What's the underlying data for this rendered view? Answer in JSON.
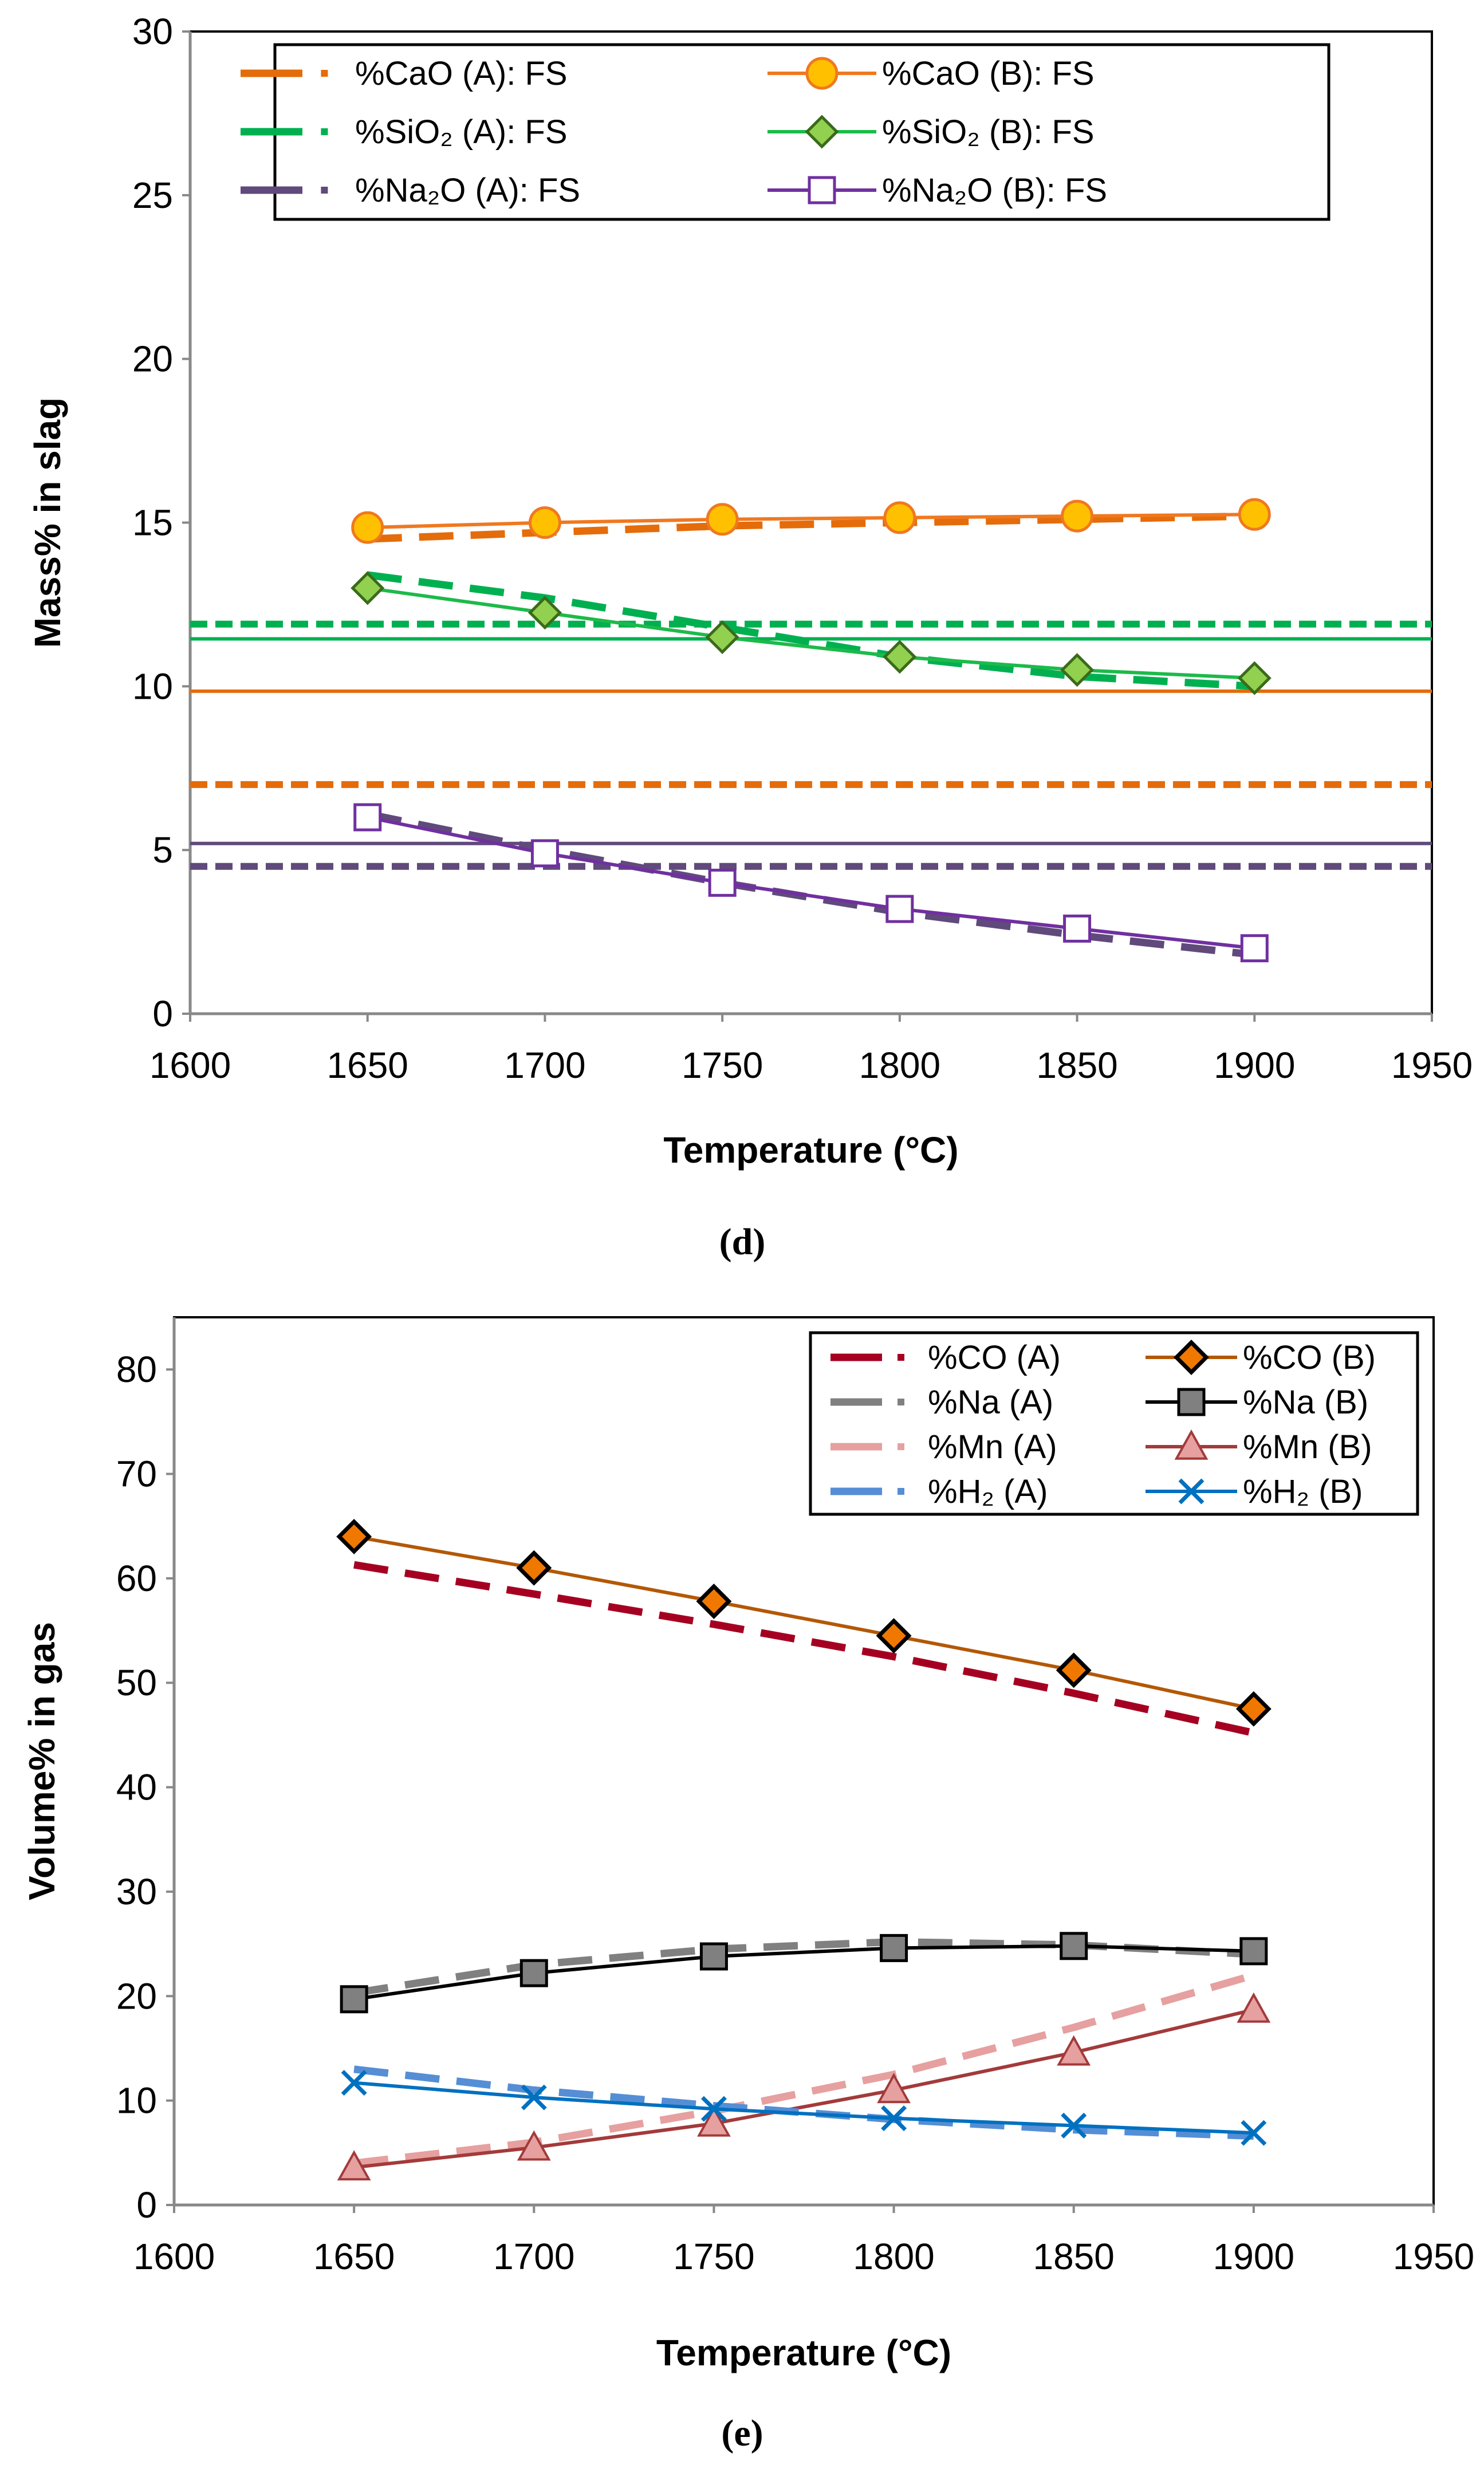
{
  "chart_data": [
    {
      "type": "line",
      "panel_label": "(d)",
      "xlabel": "Temperature (°C)",
      "ylabel": "Mass% in slag",
      "xlim": [
        1600,
        1950
      ],
      "ylim": [
        0,
        30
      ],
      "xticks": [
        "1600",
        "1650",
        "1700",
        "1750",
        "1800",
        "1850",
        "1900",
        "1950"
      ],
      "yticks": [
        "0",
        "5",
        "10",
        "15",
        "20",
        "25",
        "30"
      ],
      "grid": false,
      "legend_position": "top",
      "x": [
        1650,
        1700,
        1750,
        1800,
        1850,
        1900
      ],
      "series": [
        {
          "name": "%CaO (A): FS",
          "style": "dashed",
          "marker": "none",
          "color": "#E46C0A",
          "values": [
            14.5,
            14.7,
            14.9,
            15.0,
            15.1,
            15.2
          ]
        },
        {
          "name": "%CaO (B): FS",
          "style": "solid",
          "marker": "circle",
          "color": "#F07820",
          "marker_fill": "#FFC000",
          "values": [
            14.85,
            15.0,
            15.1,
            15.15,
            15.2,
            15.25
          ]
        },
        {
          "name": "%SiO₂ (A): FS",
          "style": "dashed",
          "marker": "none",
          "color": "#00B050",
          "values": [
            13.4,
            12.7,
            11.8,
            10.9,
            10.3,
            10.0
          ]
        },
        {
          "name": "%SiO₂ (B): FS",
          "style": "solid",
          "marker": "diamond",
          "color": "#1DBA4A",
          "marker_fill": "#92D050",
          "values": [
            13.0,
            12.25,
            11.5,
            10.9,
            10.5,
            10.25
          ]
        },
        {
          "name": "%Na₂O (A): FS",
          "style": "dashed",
          "marker": "none",
          "color": "#604A7B",
          "values": [
            6.1,
            5.0,
            4.0,
            3.1,
            2.4,
            1.8
          ]
        },
        {
          "name": "%Na₂O (B): FS",
          "style": "solid",
          "marker": "square",
          "color": "#7030A0",
          "marker_fill": "#FFFFFF",
          "values": [
            6.0,
            4.9,
            4.0,
            3.2,
            2.6,
            2.0
          ]
        }
      ],
      "reference_lines": [
        {
          "y": 11.9,
          "style": "dashed",
          "color": "#00B050"
        },
        {
          "y": 11.45,
          "style": "solid",
          "color": "#00B050"
        },
        {
          "y": 9.85,
          "style": "solid",
          "color": "#E46C0A"
        },
        {
          "y": 7.0,
          "style": "dashed",
          "color": "#E46C0A"
        },
        {
          "y": 5.2,
          "style": "solid",
          "color": "#604A7B"
        },
        {
          "y": 4.5,
          "style": "dashed",
          "color": "#604A7B"
        }
      ]
    },
    {
      "type": "line",
      "panel_label": "(e)",
      "xlabel": "Temperature (°C)",
      "ylabel": "Volume% in gas",
      "xlim": [
        1600,
        1950
      ],
      "ylim": [
        0,
        85
      ],
      "xticks": [
        "1600",
        "1650",
        "1700",
        "1750",
        "1800",
        "1850",
        "1900",
        "1950"
      ],
      "yticks": [
        "0",
        "10",
        "20",
        "30",
        "40",
        "50",
        "60",
        "70",
        "80"
      ],
      "grid": false,
      "legend_position": "top-right",
      "x": [
        1650,
        1700,
        1750,
        1800,
        1850,
        1900
      ],
      "series": [
        {
          "name": "%CO (A)",
          "style": "dashed",
          "marker": "none",
          "color": "#A50021",
          "values": [
            61.3,
            58.5,
            55.6,
            52.5,
            49.0,
            45.2
          ]
        },
        {
          "name": "%CO (B)",
          "style": "solid",
          "marker": "diamond",
          "color": "#B35806",
          "marker_fill": "#F07800",
          "marker_edge": "#000000",
          "values": [
            64.0,
            61.0,
            57.8,
            54.5,
            51.2,
            47.5
          ]
        },
        {
          "name": "%Na (A)",
          "style": "dashed",
          "marker": "none",
          "color": "#808080",
          "values": [
            20.3,
            23.0,
            24.5,
            25.2,
            24.9,
            24.0
          ]
        },
        {
          "name": "%Na (B)",
          "style": "solid",
          "marker": "square",
          "color": "#000000",
          "marker_fill": "#808080",
          "values": [
            19.7,
            22.2,
            23.8,
            24.6,
            24.8,
            24.3
          ]
        },
        {
          "name": "%Mn (A)",
          "style": "dashed",
          "marker": "none",
          "color": "#E6A0A0",
          "values": [
            4.0,
            6.0,
            9.0,
            12.5,
            17.0,
            22.0
          ]
        },
        {
          "name": "%Mn (B)",
          "style": "solid",
          "marker": "triangle",
          "color": "#A33A3A",
          "marker_fill": "#E6A0A0",
          "values": [
            3.6,
            5.5,
            7.8,
            11.0,
            14.6,
            18.7
          ]
        },
        {
          "name": "%H₂ (A)",
          "style": "dashed",
          "marker": "none",
          "color": "#558ED5",
          "values": [
            13.0,
            11.0,
            9.5,
            8.2,
            7.2,
            6.6
          ]
        },
        {
          "name": "%H₂ (B)",
          "style": "solid",
          "marker": "x",
          "color": "#0070C0",
          "values": [
            11.7,
            10.3,
            9.2,
            8.3,
            7.6,
            6.9
          ]
        }
      ]
    }
  ]
}
